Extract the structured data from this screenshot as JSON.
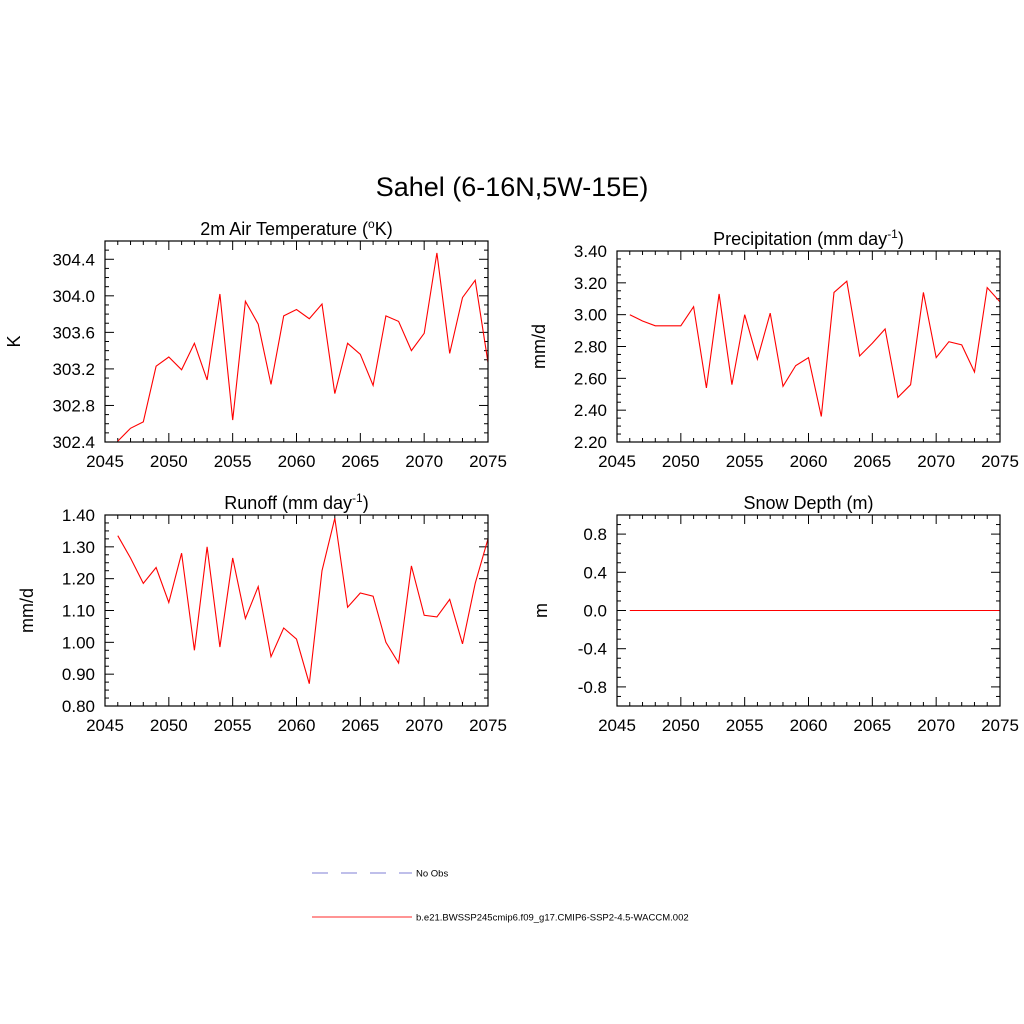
{
  "figure": {
    "title": "Sahel (6-16N,5W-15E)"
  },
  "legend": {
    "entries": [
      {
        "label": "No Obs",
        "color": "#9999dd",
        "style": "dashed"
      },
      {
        "label": "b.e21.BWSSP245cmip6.f09_g17.CMIP6-SSP2-4.5-WACCM.002",
        "color": "#ff5555",
        "style": "solid"
      }
    ]
  },
  "chart_data": [
    {
      "type": "line",
      "title": "2m Air Temperature (oK)",
      "title_parts": {
        "before": "2m Air Temperature (",
        "sup": "o",
        "after": "K)"
      },
      "xlabel": "",
      "ylabel": "K",
      "xlim": [
        2045,
        2075
      ],
      "ylim": [
        302.4,
        304.6
      ],
      "xticks": [
        "2045",
        "2050",
        "2055",
        "2060",
        "2065",
        "2070",
        "2075"
      ],
      "xtick_values": [
        2045,
        2050,
        2055,
        2060,
        2065,
        2070,
        2075
      ],
      "yticks": [
        "302.4",
        "302.8",
        "303.2",
        "303.6",
        "304.0",
        "304.4"
      ],
      "ytick_values": [
        302.4,
        302.8,
        303.2,
        303.6,
        304.0,
        304.4
      ],
      "series": [
        {
          "color": "#ff0000",
          "x": [
            2046,
            2047,
            2048,
            2049,
            2050,
            2051,
            2052,
            2053,
            2054,
            2055,
            2056,
            2057,
            2058,
            2059,
            2060,
            2061,
            2062,
            2063,
            2064,
            2065,
            2066,
            2067,
            2068,
            2069,
            2070,
            2071,
            2072,
            2073,
            2074,
            2075
          ],
          "y": [
            302.41,
            302.55,
            302.62,
            303.23,
            303.33,
            303.19,
            303.48,
            303.08,
            304.02,
            302.64,
            303.94,
            303.69,
            303.03,
            303.78,
            303.85,
            303.75,
            303.91,
            302.93,
            303.48,
            303.36,
            303.02,
            303.78,
            303.72,
            303.4,
            303.59,
            304.47,
            303.37,
            303.98,
            304.17,
            303.27
          ]
        }
      ]
    },
    {
      "type": "line",
      "title": "Precipitation (mm day-1)",
      "title_parts": {
        "before": "Precipitation (mm day",
        "sup": "-1",
        "after": ")"
      },
      "xlabel": "",
      "ylabel": "mm/d",
      "xlim": [
        2045,
        2075
      ],
      "ylim": [
        2.2,
        3.4
      ],
      "xticks": [
        "2045",
        "2050",
        "2055",
        "2060",
        "2065",
        "2070",
        "2075"
      ],
      "xtick_values": [
        2045,
        2050,
        2055,
        2060,
        2065,
        2070,
        2075
      ],
      "yticks": [
        "2.20",
        "2.40",
        "2.60",
        "2.80",
        "3.00",
        "3.20",
        "3.40"
      ],
      "ytick_values": [
        2.2,
        2.4,
        2.6,
        2.8,
        3.0,
        3.2,
        3.4
      ],
      "series": [
        {
          "color": "#ff0000",
          "x": [
            2046,
            2047,
            2048,
            2049,
            2050,
            2051,
            2052,
            2053,
            2054,
            2055,
            2056,
            2057,
            2058,
            2059,
            2060,
            2061,
            2062,
            2063,
            2064,
            2065,
            2066,
            2067,
            2068,
            2069,
            2070,
            2071,
            2072,
            2073,
            2074,
            2075
          ],
          "y": [
            3.0,
            2.96,
            2.93,
            2.93,
            2.93,
            3.05,
            2.54,
            3.13,
            2.56,
            3.0,
            2.72,
            3.01,
            2.55,
            2.68,
            2.73,
            2.36,
            3.14,
            3.21,
            2.74,
            2.82,
            2.91,
            2.48,
            2.56,
            3.14,
            2.73,
            2.83,
            2.81,
            2.64,
            3.17,
            3.08
          ]
        }
      ]
    },
    {
      "type": "line",
      "title": "Runoff (mm day-1)",
      "title_parts": {
        "before": "Runoff (mm day",
        "sup": "-1",
        "after": ")"
      },
      "xlabel": "",
      "ylabel": "mm/d",
      "xlim": [
        2045,
        2075
      ],
      "ylim": [
        0.8,
        1.4
      ],
      "xticks": [
        "2045",
        "2050",
        "2055",
        "2060",
        "2065",
        "2070",
        "2075"
      ],
      "xtick_values": [
        2045,
        2050,
        2055,
        2060,
        2065,
        2070,
        2075
      ],
      "yticks": [
        "0.80",
        "0.90",
        "1.00",
        "1.10",
        "1.20",
        "1.30",
        "1.40"
      ],
      "ytick_values": [
        0.8,
        0.9,
        1.0,
        1.1,
        1.2,
        1.3,
        1.4
      ],
      "series": [
        {
          "color": "#ff0000",
          "x": [
            2046,
            2047,
            2048,
            2049,
            2050,
            2051,
            2052,
            2053,
            2054,
            2055,
            2056,
            2057,
            2058,
            2059,
            2060,
            2061,
            2062,
            2063,
            2064,
            2065,
            2066,
            2067,
            2068,
            2069,
            2070,
            2071,
            2072,
            2073,
            2074,
            2075
          ],
          "y": [
            1.335,
            1.265,
            1.185,
            1.235,
            1.125,
            1.28,
            0.975,
            1.3,
            0.985,
            1.265,
            1.075,
            1.175,
            0.955,
            1.045,
            1.01,
            0.87,
            1.225,
            1.39,
            1.11,
            1.155,
            1.145,
            1.0,
            0.935,
            1.24,
            1.085,
            1.08,
            1.135,
            0.995,
            1.185,
            1.325
          ]
        }
      ]
    },
    {
      "type": "line",
      "title": "Snow Depth (m)",
      "title_parts": {
        "before": "Snow Depth (m)",
        "sup": "",
        "after": ""
      },
      "xlabel": "",
      "ylabel": "m",
      "xlim": [
        2045,
        2075
      ],
      "ylim": [
        -1.0,
        1.0
      ],
      "xticks": [
        "2045",
        "2050",
        "2055",
        "2060",
        "2065",
        "2070",
        "2075"
      ],
      "xtick_values": [
        2045,
        2050,
        2055,
        2060,
        2065,
        2070,
        2075
      ],
      "yticks": [
        "-0.8",
        "-0.4",
        "0.0",
        "0.4",
        "0.8"
      ],
      "ytick_values": [
        -0.8,
        -0.4,
        0.0,
        0.4,
        0.8
      ],
      "series": [
        {
          "color": "#ff0000",
          "x": [
            2046,
            2047,
            2048,
            2049,
            2050,
            2051,
            2052,
            2053,
            2054,
            2055,
            2056,
            2057,
            2058,
            2059,
            2060,
            2061,
            2062,
            2063,
            2064,
            2065,
            2066,
            2067,
            2068,
            2069,
            2070,
            2071,
            2072,
            2073,
            2074,
            2075
          ],
          "y": [
            0,
            0,
            0,
            0,
            0,
            0,
            0,
            0,
            0,
            0,
            0,
            0,
            0,
            0,
            0,
            0,
            0,
            0,
            0,
            0,
            0,
            0,
            0,
            0,
            0,
            0,
            0,
            0,
            0,
            0
          ]
        }
      ]
    }
  ]
}
